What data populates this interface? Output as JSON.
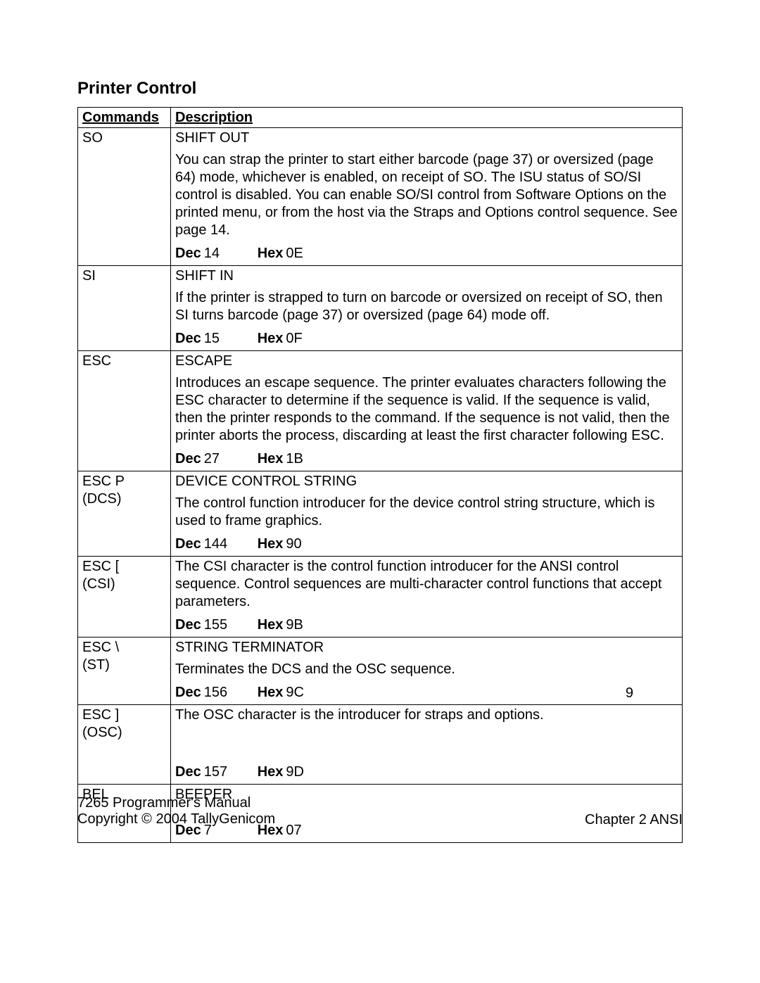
{
  "section_title": "Printer Control",
  "headers": {
    "commands": "Commands",
    "description": "Description"
  },
  "labels": {
    "dec": "Dec",
    "hex": "Hex"
  },
  "rows": [
    {
      "cmd": [
        "SO"
      ],
      "title": "SHIFT OUT",
      "body": "You can strap the printer to start either barcode (page 37) or oversized (page 64) mode, whichever is enabled, on receipt of SO. The ISU status of SO/SI control is disabled. You can enable SO/SI control from Software Options on the printed menu, or from the host via the Straps and Options control sequence. See page 14.",
      "dec": "14",
      "hex": "0E"
    },
    {
      "cmd": [
        "SI"
      ],
      "title": "SHIFT IN",
      "body": "If the printer is strapped to turn on barcode or oversized on receipt of SO, then SI turns barcode (page 37) or oversized (page 64) mode off.",
      "dec": "15",
      "hex": "0F"
    },
    {
      "cmd": [
        "ESC"
      ],
      "title": "ESCAPE",
      "body": "Introduces an escape sequence. The printer evaluates characters following the ESC character to determine if the sequence is valid. If the sequence is valid, then the printer responds to the command. If the sequence is not valid, then the printer aborts the process, discarding at least the first character following ESC.",
      "dec": "27",
      "hex": "1B"
    },
    {
      "cmd": [
        "ESC P",
        "(DCS)"
      ],
      "title": "DEVICE CONTROL STRING",
      "body": "The control function introducer for the device control string structure, which is used to frame graphics.",
      "dec": "144",
      "hex": "90"
    },
    {
      "cmd": [
        "ESC [",
        "(CSI)"
      ],
      "title": "",
      "body": "The CSI character is the control function introducer for the ANSI control sequence. Control sequences are multi-character control functions that accept parameters.",
      "dec": "155",
      "hex": "9B",
      "body_before_title": true
    },
    {
      "cmd": [
        "ESC \\",
        "(ST)"
      ],
      "title": "STRING TERMINATOR",
      "body": "Terminates the DCS and the OSC sequence.",
      "dec": "156",
      "hex": "9C"
    },
    {
      "cmd": [
        "ESC ]",
        "(OSC)"
      ],
      "title": "",
      "body": "The OSC character is the introducer for straps and options.",
      "dec": "157",
      "hex": "9D",
      "body_before_title": true,
      "extra_space": true
    },
    {
      "cmd": [
        "BEL"
      ],
      "title": "BEEPER",
      "body": "",
      "dec": "7",
      "hex": "07",
      "small_space": true
    }
  ],
  "page_number": "9",
  "footer": {
    "manual": "7265 Programmer's Manual",
    "copyright": "Copyright © 2004 TallyGenicom",
    "chapter": "Chapter 2 ANSI"
  }
}
